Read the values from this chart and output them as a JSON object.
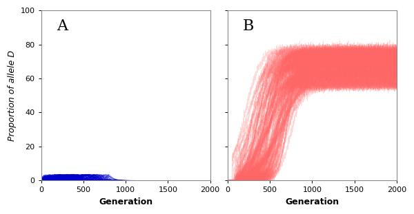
{
  "panel_A_label": "A",
  "panel_B_label": "B",
  "xlabel": "Generation",
  "ylabel": "Proportion of allele D",
  "xlim": [
    0,
    2000
  ],
  "ylim": [
    0,
    100
  ],
  "yticks": [
    0,
    20,
    40,
    60,
    80,
    100
  ],
  "xticks": [
    0,
    500,
    1000,
    1500,
    2000
  ],
  "n_generations": 2001,
  "n_lines_A": 100,
  "n_lines_B": 100,
  "color_A": "#0000CC",
  "color_B": "#FF6666",
  "alpha_A": 0.35,
  "alpha_B": 0.25,
  "linewidth_A": 0.4,
  "linewidth_B": 0.5,
  "seed_A": 42,
  "seed_B": 99,
  "panel_label_fontsize": 16,
  "axis_label_fontsize": 9,
  "tick_fontsize": 8,
  "background_color": "#FFFFFF"
}
